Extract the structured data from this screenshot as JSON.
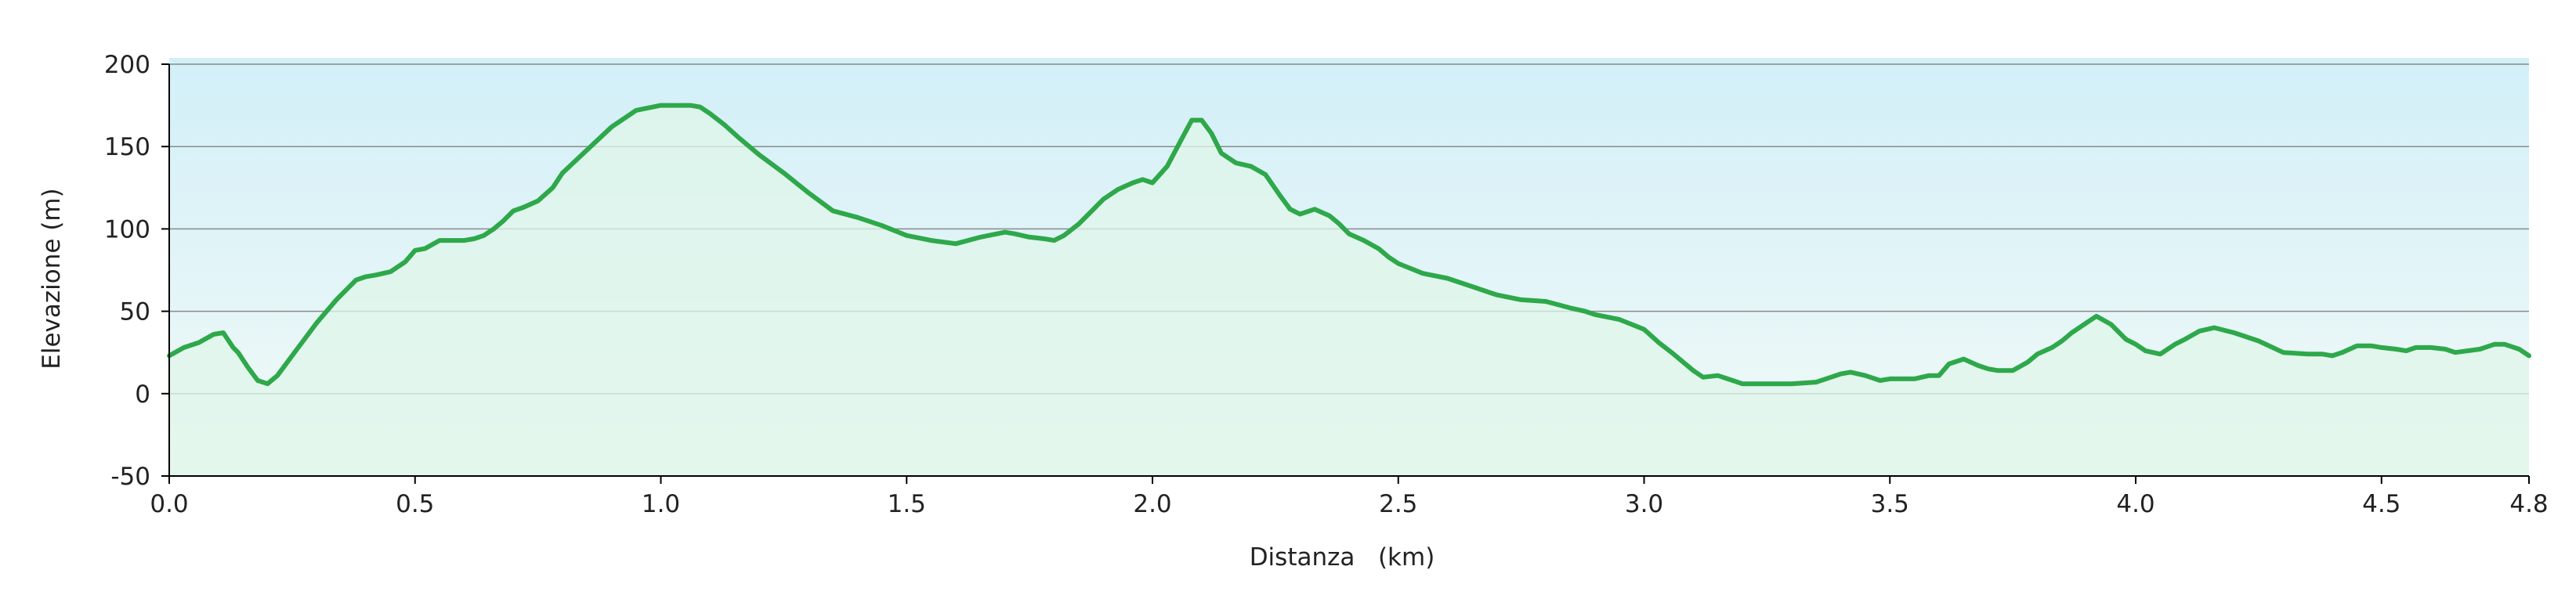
{
  "chart_data": {
    "type": "area",
    "title": "",
    "xlabel": "Distanza   (km)",
    "ylabel": "Elevazione (m)",
    "xlim": [
      0,
      4.8
    ],
    "ylim": [
      -50,
      200
    ],
    "x_ticks": [
      "0.0",
      "0.5",
      "1.0",
      "1.5",
      "2.0",
      "2.5",
      "3.0",
      "3.5",
      "4.0",
      "4.5",
      "4.8"
    ],
    "y_ticks": [
      "200",
      "150",
      "100",
      "50",
      "0",
      "-50"
    ],
    "grid": true,
    "legend": "none",
    "colors": {
      "line": "#2ea84a",
      "fill": "#dff5ea",
      "background_top": "#d2eff8",
      "background_bottom": "#f2faf7",
      "grid": "#8a8a8a"
    },
    "series": [
      {
        "x": [
          0.0,
          0.03,
          0.06,
          0.09,
          0.11,
          0.13,
          0.14,
          0.16,
          0.18,
          0.2,
          0.22,
          0.24,
          0.26,
          0.3,
          0.34,
          0.38,
          0.4,
          0.42,
          0.45,
          0.48,
          0.5,
          0.52,
          0.55,
          0.58,
          0.6,
          0.62,
          0.64,
          0.66,
          0.68,
          0.7,
          0.72,
          0.75,
          0.78,
          0.8,
          0.85,
          0.9,
          0.95,
          1.0,
          1.03,
          1.06,
          1.08,
          1.1,
          1.13,
          1.16,
          1.2,
          1.25,
          1.3,
          1.35,
          1.4,
          1.45,
          1.5,
          1.55,
          1.6,
          1.65,
          1.7,
          1.72,
          1.75,
          1.78,
          1.8,
          1.82,
          1.85,
          1.88,
          1.9,
          1.93,
          1.96,
          1.98,
          2.0,
          2.03,
          2.06,
          2.08,
          2.1,
          2.12,
          2.14,
          2.17,
          2.2,
          2.23,
          2.26,
          2.28,
          2.3,
          2.33,
          2.36,
          2.38,
          2.4,
          2.43,
          2.46,
          2.48,
          2.5,
          2.55,
          2.6,
          2.65,
          2.7,
          2.75,
          2.8,
          2.85,
          2.88,
          2.9,
          2.95,
          3.0,
          3.03,
          3.06,
          3.08,
          3.1,
          3.12,
          3.15,
          3.18,
          3.2,
          3.25,
          3.3,
          3.35,
          3.38,
          3.4,
          3.42,
          3.45,
          3.48,
          3.5,
          3.55,
          3.58,
          3.6,
          3.62,
          3.65,
          3.68,
          3.7,
          3.72,
          3.75,
          3.78,
          3.8,
          3.83,
          3.85,
          3.87,
          3.9,
          3.92,
          3.95,
          3.98,
          4.0,
          4.02,
          4.05,
          4.08,
          4.1,
          4.13,
          4.16,
          4.2,
          4.25,
          4.3,
          4.35,
          4.38,
          4.4,
          4.42,
          4.45,
          4.48,
          4.5,
          4.53,
          4.55,
          4.57,
          4.6,
          4.63,
          4.65,
          4.7,
          4.73,
          4.75,
          4.78,
          4.8
        ],
        "values": [
          23,
          28,
          31,
          36,
          37,
          28,
          25,
          16,
          8,
          6,
          11,
          19,
          27,
          43,
          57,
          69,
          71,
          72,
          74,
          80,
          87,
          88,
          93,
          93,
          93,
          94,
          96,
          100,
          105,
          111,
          113,
          117,
          125,
          134,
          148,
          162,
          172,
          175,
          175,
          175,
          174,
          170,
          163,
          155,
          145,
          134,
          122,
          111,
          107,
          102,
          96,
          93,
          91,
          95,
          98,
          97,
          95,
          94,
          93,
          96,
          103,
          112,
          118,
          124,
          128,
          130,
          128,
          138,
          155,
          166,
          166,
          158,
          146,
          140,
          138,
          133,
          120,
          112,
          109,
          112,
          108,
          103,
          97,
          93,
          88,
          83,
          79,
          73,
          70,
          65,
          60,
          57,
          56,
          52,
          50,
          48,
          45,
          39,
          31,
          24,
          19,
          14,
          10,
          11,
          8,
          6,
          6,
          6,
          7,
          10,
          12,
          13,
          11,
          8,
          9,
          9,
          11,
          11,
          18,
          21,
          17,
          15,
          14,
          14,
          19,
          24,
          28,
          32,
          37,
          43,
          47,
          42,
          33,
          30,
          26,
          24,
          30,
          33,
          38,
          40,
          37,
          32,
          25,
          24,
          24,
          23,
          25,
          29,
          29,
          28,
          27,
          26,
          28,
          28,
          27,
          25,
          27,
          30,
          30,
          27,
          23
        ]
      }
    ]
  }
}
